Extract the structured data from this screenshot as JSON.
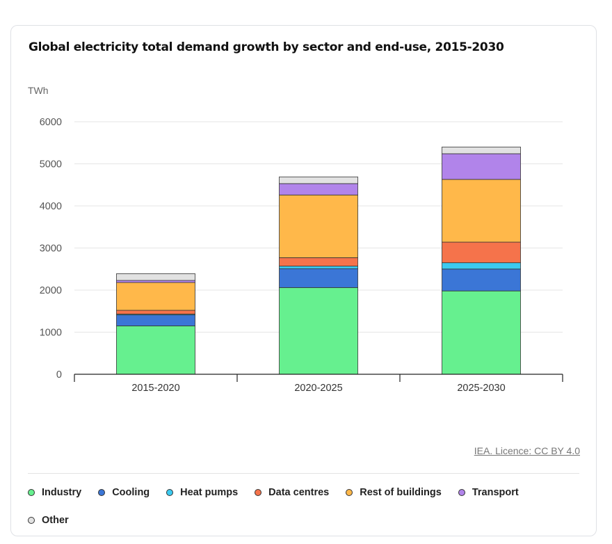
{
  "title": "Global electricity total demand growth by sector and end-use, 2015-2030",
  "credit": "IEA. Licence: CC BY 4.0",
  "chart_data": {
    "type": "bar",
    "stacked": true,
    "ylabel": "TWh",
    "ylim": [
      0,
      6000
    ],
    "yticks": [
      0,
      1000,
      2000,
      3000,
      4000,
      5000,
      6000
    ],
    "grid": true,
    "legend_position": "bottom",
    "categories": [
      "2015-2020",
      "2020-2025",
      "2025-2030"
    ],
    "series": [
      {
        "name": "Industry",
        "color": "#66f08f",
        "values": [
          1150,
          2060,
          1980
        ]
      },
      {
        "name": "Cooling",
        "color": "#3b76d6",
        "values": [
          260,
          450,
          520
        ]
      },
      {
        "name": "Heat pumps",
        "color": "#3ccaf0",
        "values": [
          20,
          60,
          150
        ]
      },
      {
        "name": "Data centres",
        "color": "#f5734b",
        "values": [
          90,
          200,
          490
        ]
      },
      {
        "name": "Rest of buildings",
        "color": "#ffb84a",
        "values": [
          660,
          1490,
          1490
        ]
      },
      {
        "name": "Transport",
        "color": "#b184ea",
        "values": [
          50,
          270,
          610
        ]
      },
      {
        "name": "Other",
        "color": "#e2e2e2",
        "values": [
          160,
          160,
          160
        ]
      }
    ]
  }
}
